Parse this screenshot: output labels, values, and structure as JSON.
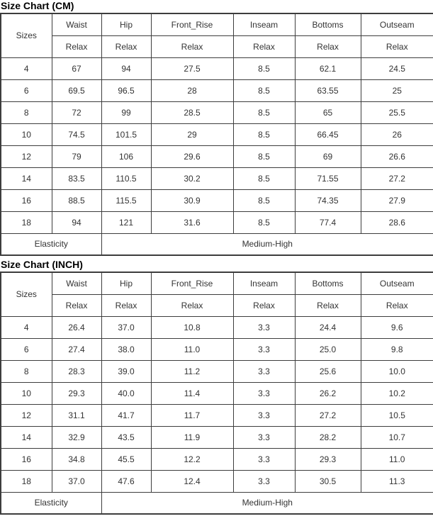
{
  "colors": {
    "border": "#3d3d3d",
    "text": "#333333",
    "title": "#000000",
    "background": "#ffffff"
  },
  "tables": [
    {
      "title": "Size Chart (CM)",
      "size_header": "Sizes",
      "columns": [
        "Waist",
        "Hip",
        "Front_Rise",
        "Inseam",
        "Bottoms",
        "Outseam"
      ],
      "fit": [
        "Relax",
        "Relax",
        "Relax",
        "Relax",
        "Relax",
        "Relax"
      ],
      "rows": [
        {
          "size": "4",
          "values": [
            "67",
            "94",
            "27.5",
            "8.5",
            "62.1",
            "24.5"
          ]
        },
        {
          "size": "6",
          "values": [
            "69.5",
            "96.5",
            "28",
            "8.5",
            "63.55",
            "25"
          ]
        },
        {
          "size": "8",
          "values": [
            "72",
            "99",
            "28.5",
            "8.5",
            "65",
            "25.5"
          ]
        },
        {
          "size": "10",
          "values": [
            "74.5",
            "101.5",
            "29",
            "8.5",
            "66.45",
            "26"
          ]
        },
        {
          "size": "12",
          "values": [
            "79",
            "106",
            "29.6",
            "8.5",
            "69",
            "26.6"
          ]
        },
        {
          "size": "14",
          "values": [
            "83.5",
            "110.5",
            "30.2",
            "8.5",
            "71.55",
            "27.2"
          ]
        },
        {
          "size": "16",
          "values": [
            "88.5",
            "115.5",
            "30.9",
            "8.5",
            "74.35",
            "27.9"
          ]
        },
        {
          "size": "18",
          "values": [
            "94",
            "121",
            "31.6",
            "8.5",
            "77.4",
            "28.6"
          ]
        }
      ],
      "footer": {
        "label": "Elasticity",
        "value": "Medium-High"
      }
    },
    {
      "title": "Size Chart (INCH)",
      "size_header": "Sizes",
      "columns": [
        "Waist",
        "Hip",
        "Front_Rise",
        "Inseam",
        "Bottoms",
        "Outseam"
      ],
      "fit": [
        "Relax",
        "Relax",
        "Relax",
        "Relax",
        "Relax",
        "Relax"
      ],
      "rows": [
        {
          "size": "4",
          "values": [
            "26.4",
            "37.0",
            "10.8",
            "3.3",
            "24.4",
            "9.6"
          ]
        },
        {
          "size": "6",
          "values": [
            "27.4",
            "38.0",
            "11.0",
            "3.3",
            "25.0",
            "9.8"
          ]
        },
        {
          "size": "8",
          "values": [
            "28.3",
            "39.0",
            "11.2",
            "3.3",
            "25.6",
            "10.0"
          ]
        },
        {
          "size": "10",
          "values": [
            "29.3",
            "40.0",
            "11.4",
            "3.3",
            "26.2",
            "10.2"
          ]
        },
        {
          "size": "12",
          "values": [
            "31.1",
            "41.7",
            "11.7",
            "3.3",
            "27.2",
            "10.5"
          ]
        },
        {
          "size": "14",
          "values": [
            "32.9",
            "43.5",
            "11.9",
            "3.3",
            "28.2",
            "10.7"
          ]
        },
        {
          "size": "16",
          "values": [
            "34.8",
            "45.5",
            "12.2",
            "3.3",
            "29.3",
            "11.0"
          ]
        },
        {
          "size": "18",
          "values": [
            "37.0",
            "47.6",
            "12.4",
            "3.3",
            "30.5",
            "11.3"
          ]
        }
      ],
      "footer": {
        "label": "Elasticity",
        "value": "Medium-High"
      }
    }
  ]
}
